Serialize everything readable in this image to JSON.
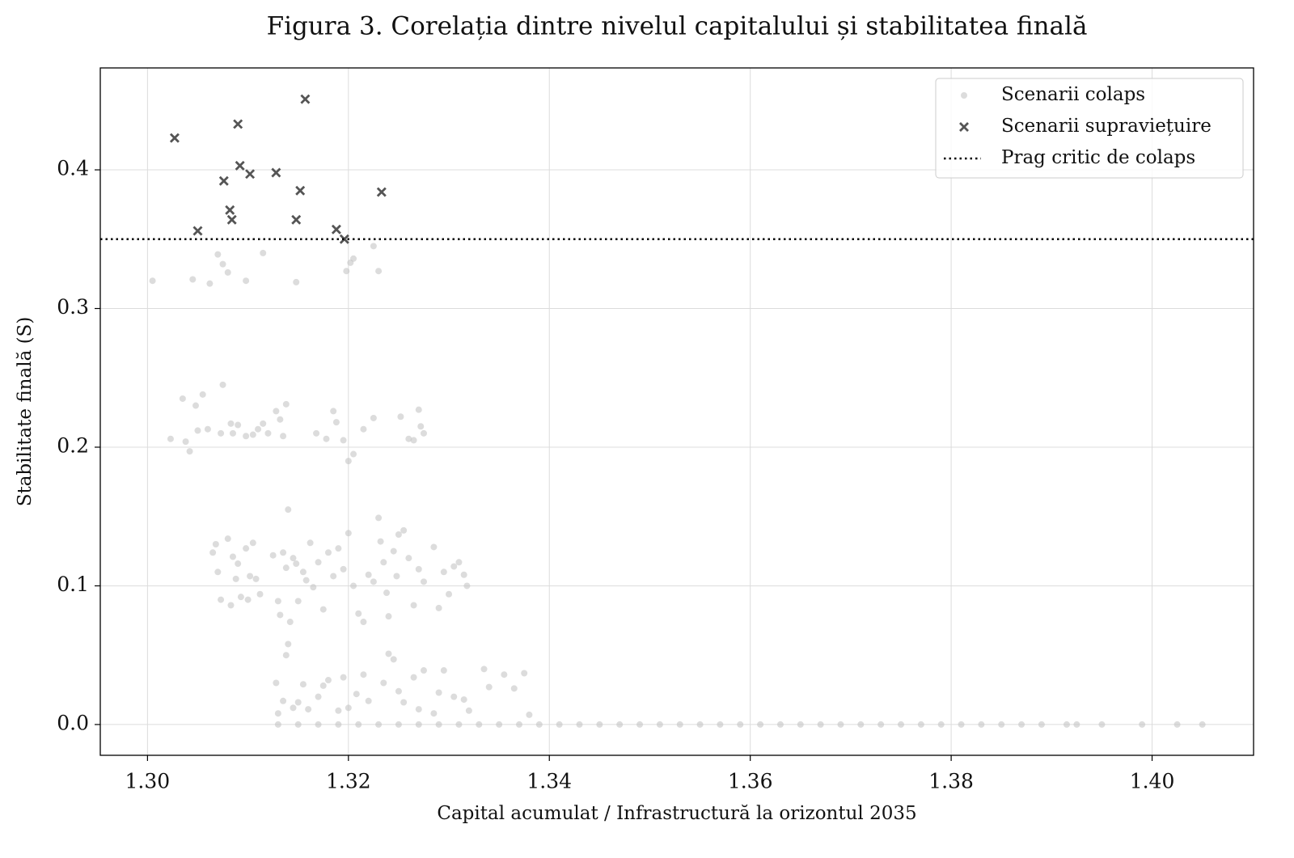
{
  "chart_data": {
    "type": "scatter",
    "title": "Figura 3. Corelația dintre nivelul capitalului și stabilitatea finală",
    "xlabel": "Capital acumulat / Infrastructură la orizontul 2035",
    "ylabel": "Stabilitate finală (S)",
    "xlim": [
      1.2953,
      1.4101
    ],
    "ylim": [
      -0.0222,
      0.4735
    ],
    "xticks": [
      {
        "value": 1.3,
        "label": "1.30"
      },
      {
        "value": 1.32,
        "label": "1.32"
      },
      {
        "value": 1.34,
        "label": "1.34"
      },
      {
        "value": 1.36,
        "label": "1.36"
      },
      {
        "value": 1.38,
        "label": "1.38"
      },
      {
        "value": 1.4,
        "label": "1.40"
      }
    ],
    "yticks": [
      {
        "value": 0,
        "label": "0.0"
      },
      0.1,
      0.2,
      0.3,
      0.4
    ],
    "grid": true,
    "legend": "upper right",
    "series": [
      {
        "name": "Scenarii colaps",
        "color": "#c4c4c4",
        "marker": "circle",
        "x": [
          1.3005,
          1.3045,
          1.3062,
          1.307,
          1.3075,
          1.308,
          1.3098,
          1.3115,
          1.3148,
          1.3198,
          1.3202,
          1.3205,
          1.3225,
          1.323,
          1.3023,
          1.3035,
          1.3038,
          1.3042,
          1.3048,
          1.305,
          1.3055,
          1.306,
          1.3073,
          1.3075,
          1.3083,
          1.3085,
          1.309,
          1.3098,
          1.3105,
          1.311,
          1.3115,
          1.312,
          1.3128,
          1.3132,
          1.3135,
          1.3138,
          1.3168,
          1.3178,
          1.3185,
          1.3188,
          1.3195,
          1.32,
          1.3205,
          1.3215,
          1.3225,
          1.3252,
          1.326,
          1.3265,
          1.327,
          1.3272,
          1.3275,
          1.3065,
          1.3068,
          1.307,
          1.3073,
          1.308,
          1.3083,
          1.3085,
          1.3088,
          1.309,
          1.3093,
          1.3098,
          1.31,
          1.3102,
          1.3105,
          1.3108,
          1.3112,
          1.3125,
          1.313,
          1.3132,
          1.3135,
          1.3138,
          1.314,
          1.3142,
          1.3145,
          1.3148,
          1.315,
          1.3155,
          1.3158,
          1.3162,
          1.3165,
          1.317,
          1.3175,
          1.318,
          1.3185,
          1.319,
          1.3195,
          1.32,
          1.3205,
          1.321,
          1.3215,
          1.322,
          1.3225,
          1.323,
          1.3232,
          1.3235,
          1.3238,
          1.324,
          1.3245,
          1.3248,
          1.325,
          1.3255,
          1.326,
          1.3265,
          1.327,
          1.3275,
          1.3285,
          1.329,
          1.3295,
          1.33,
          1.3305,
          1.331,
          1.3315,
          1.3318,
          1.3128,
          1.313,
          1.3135,
          1.3138,
          1.314,
          1.3145,
          1.315,
          1.3155,
          1.316,
          1.317,
          1.3175,
          1.318,
          1.319,
          1.3195,
          1.32,
          1.3208,
          1.3215,
          1.322,
          1.3235,
          1.324,
          1.3245,
          1.325,
          1.3255,
          1.3265,
          1.327,
          1.3275,
          1.3285,
          1.329,
          1.3295,
          1.3305,
          1.3315,
          1.332,
          1.3335,
          1.334,
          1.3355,
          1.3365,
          1.3375,
          1.338,
          1.313,
          1.315,
          1.317,
          1.319,
          1.321,
          1.323,
          1.325,
          1.327,
          1.329,
          1.331,
          1.333,
          1.335,
          1.337,
          1.339,
          1.341,
          1.343,
          1.345,
          1.347,
          1.349,
          1.351,
          1.353,
          1.355,
          1.357,
          1.359,
          1.361,
          1.363,
          1.365,
          1.367,
          1.369,
          1.371,
          1.373,
          1.375,
          1.377,
          1.379,
          1.381,
          1.383,
          1.385,
          1.387,
          1.389,
          1.3915,
          1.3925,
          1.395,
          1.399,
          1.4025,
          1.405
        ],
        "values": [
          0.32,
          0.321,
          0.318,
          0.339,
          0.332,
          0.326,
          0.32,
          0.34,
          0.319,
          0.327,
          0.333,
          0.336,
          0.345,
          0.327,
          0.206,
          0.235,
          0.204,
          0.197,
          0.23,
          0.212,
          0.238,
          0.213,
          0.21,
          0.245,
          0.217,
          0.21,
          0.216,
          0.208,
          0.209,
          0.213,
          0.217,
          0.21,
          0.226,
          0.22,
          0.208,
          0.231,
          0.21,
          0.206,
          0.226,
          0.218,
          0.205,
          0.19,
          0.195,
          0.213,
          0.221,
          0.222,
          0.206,
          0.205,
          0.227,
          0.215,
          0.21,
          0.124,
          0.13,
          0.11,
          0.09,
          0.134,
          0.086,
          0.121,
          0.105,
          0.116,
          0.092,
          0.127,
          0.09,
          0.107,
          0.131,
          0.105,
          0.094,
          0.122,
          0.089,
          0.079,
          0.124,
          0.113,
          0.155,
          0.074,
          0.12,
          0.116,
          0.089,
          0.11,
          0.104,
          0.131,
          0.099,
          0.117,
          0.083,
          0.124,
          0.107,
          0.127,
          0.112,
          0.138,
          0.1,
          0.08,
          0.074,
          0.108,
          0.103,
          0.149,
          0.132,
          0.117,
          0.095,
          0.078,
          0.125,
          0.107,
          0.137,
          0.14,
          0.12,
          0.086,
          0.112,
          0.103,
          0.128,
          0.084,
          0.11,
          0.094,
          0.114,
          0.117,
          0.108,
          0.1,
          0.03,
          0.008,
          0.017,
          0.05,
          0.058,
          0.012,
          0.016,
          0.029,
          0.011,
          0.02,
          0.028,
          0.032,
          0.01,
          0.034,
          0.012,
          0.022,
          0.036,
          0.017,
          0.03,
          0.051,
          0.047,
          0.024,
          0.016,
          0.034,
          0.011,
          0.039,
          0.008,
          0.023,
          0.039,
          0.02,
          0.018,
          0.01,
          0.04,
          0.027,
          0.036,
          0.026,
          0.037,
          0.007,
          0,
          0,
          0,
          0,
          0,
          0,
          0,
          0,
          0,
          0,
          0,
          0,
          0,
          0,
          0,
          0,
          0,
          0,
          0,
          0,
          0,
          0,
          0,
          0,
          0,
          0,
          0,
          0,
          0,
          0,
          0,
          0,
          0,
          0,
          0,
          0,
          0,
          0,
          0,
          0,
          0,
          0,
          0,
          0,
          0
        ]
      },
      {
        "name": "Scenarii supraviețuire",
        "color": "#555555",
        "marker": "x",
        "x": [
          1.3027,
          1.309,
          1.3157,
          1.3092,
          1.3076,
          1.3102,
          1.3128,
          1.3152,
          1.3233,
          1.3082,
          1.3084,
          1.3148,
          1.305,
          1.3188,
          1.3196
        ],
        "values": [
          0.423,
          0.433,
          0.451,
          0.403,
          0.392,
          0.397,
          0.398,
          0.385,
          0.384,
          0.371,
          0.364,
          0.364,
          0.356,
          0.357,
          0.35
        ]
      }
    ],
    "hlines": [
      {
        "name": "Prag critic de colaps",
        "value": 0.35,
        "color": "#000000",
        "style": "dotted"
      }
    ]
  }
}
